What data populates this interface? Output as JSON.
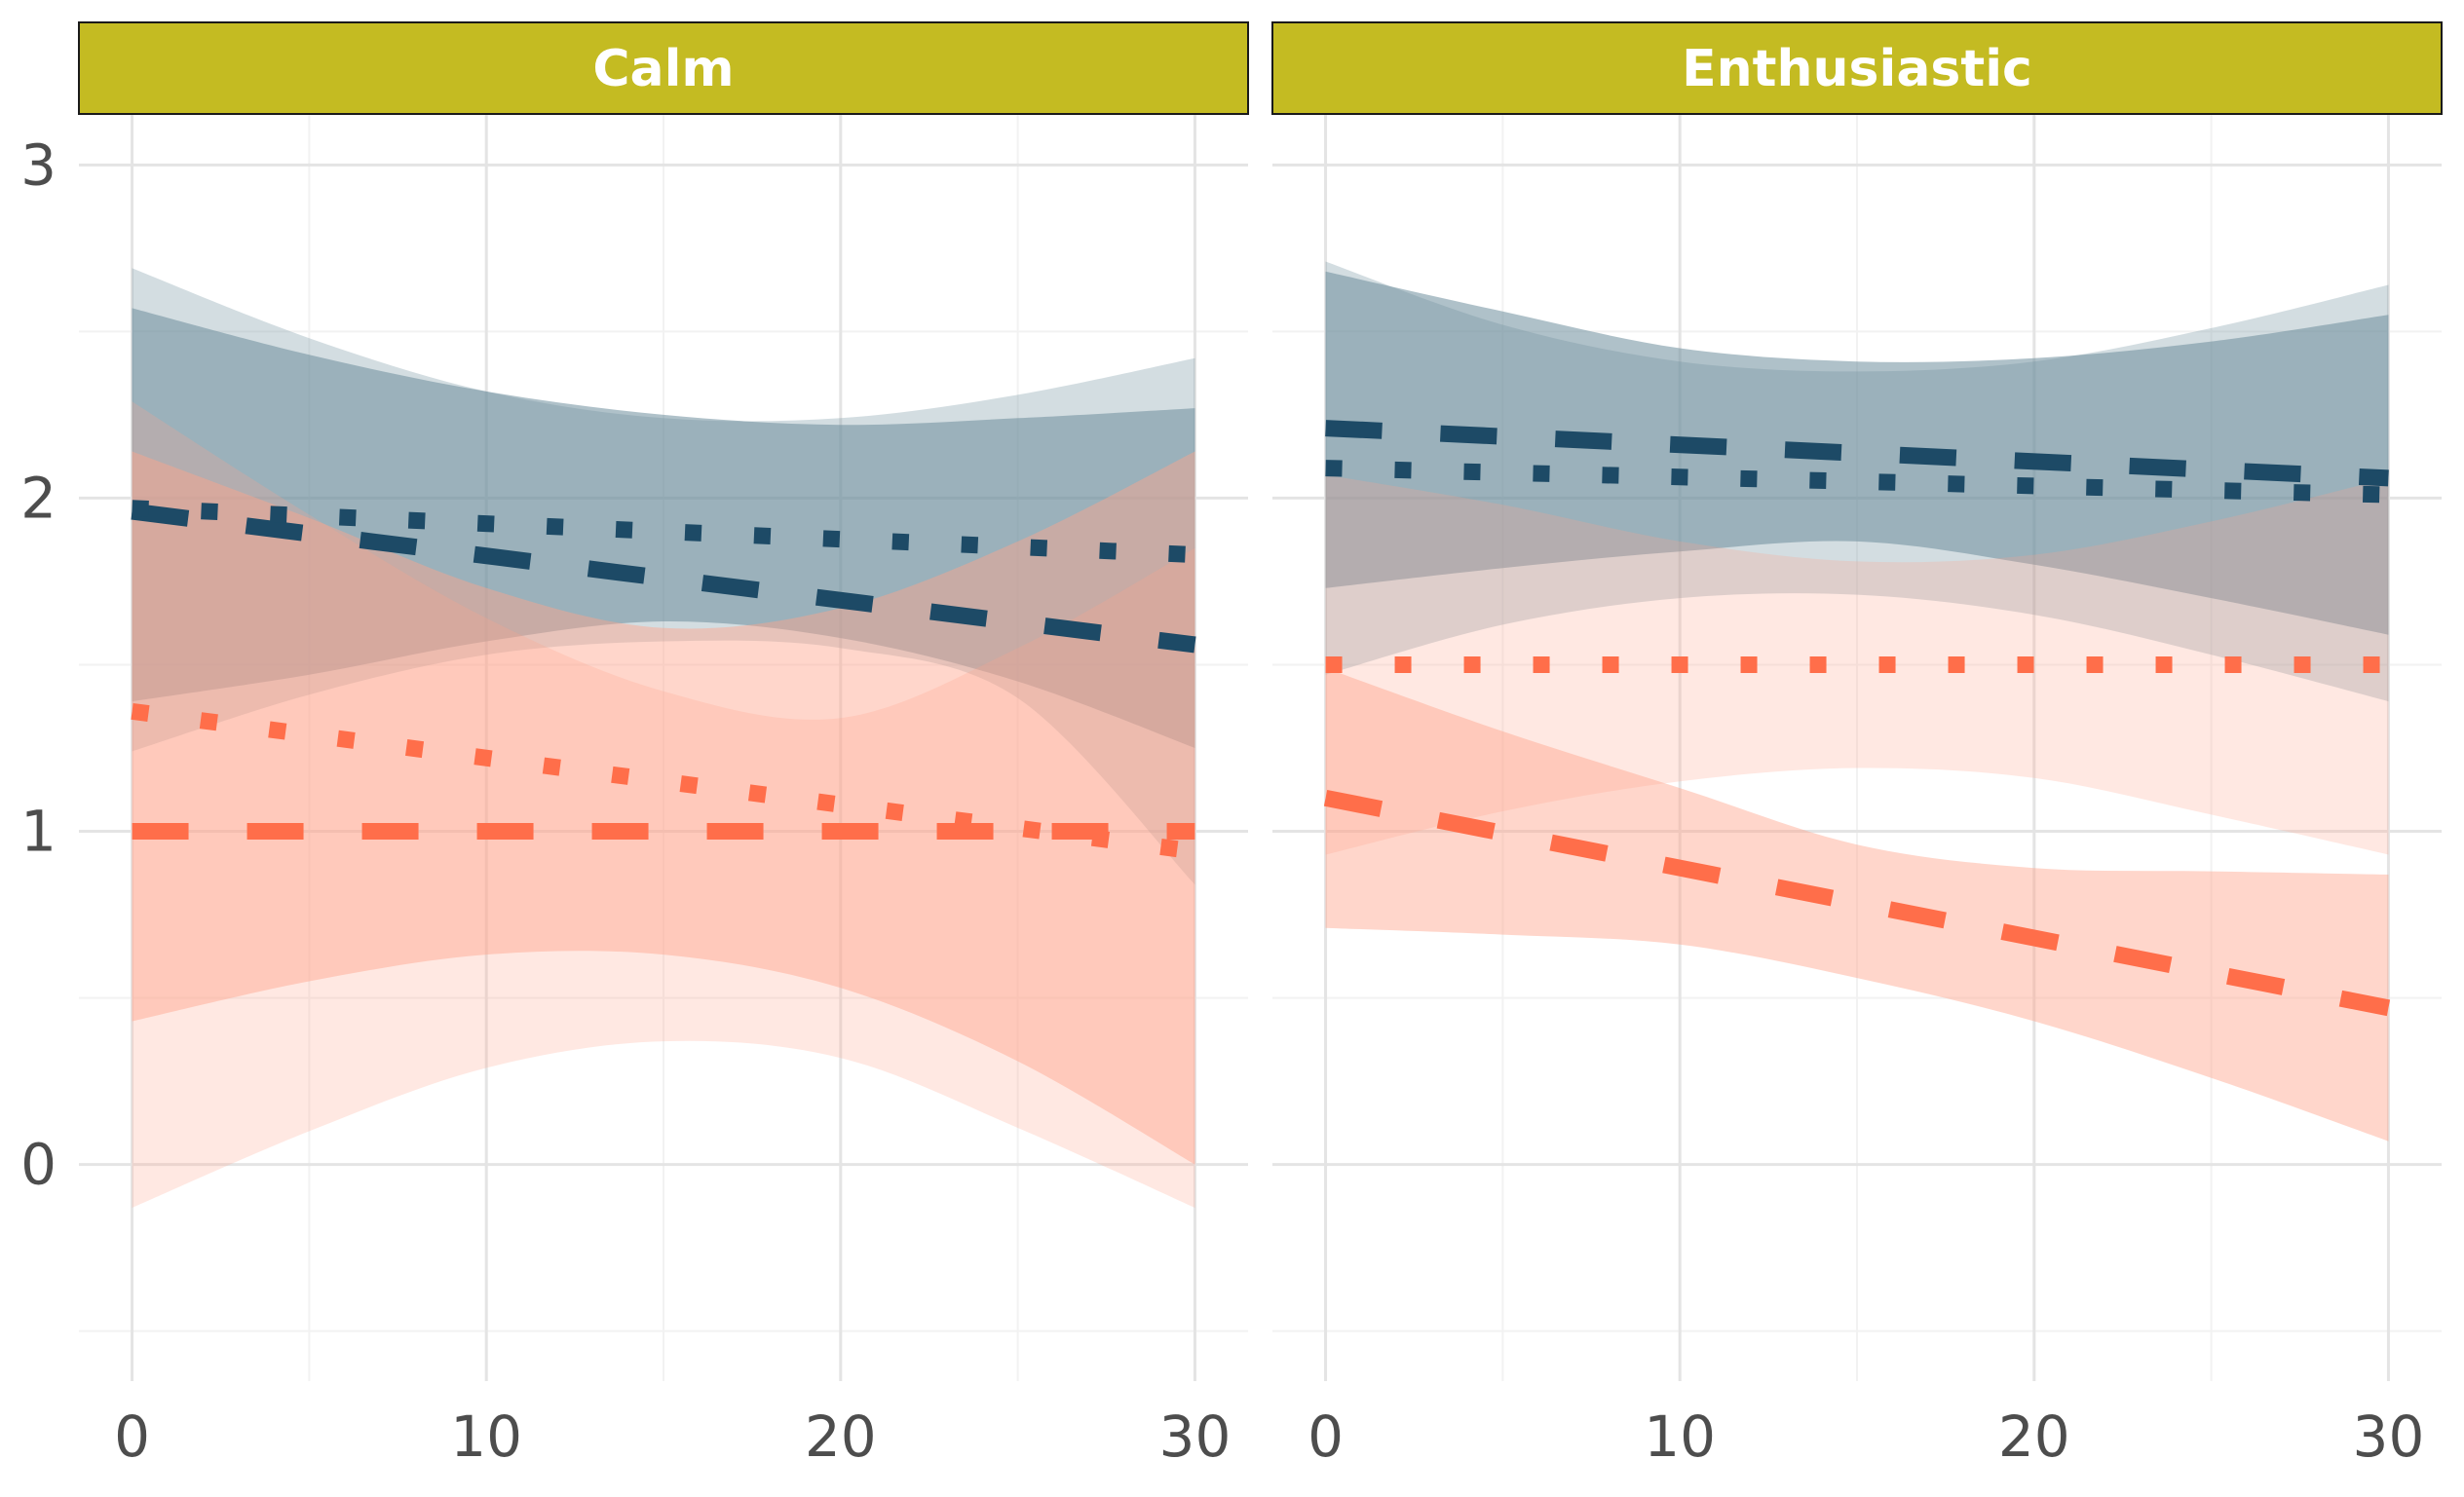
{
  "colors": {
    "strip_fill": "#c4bb22",
    "strip_border": "#1a1a1a",
    "grid_major": "#e4e4e4",
    "grid_minor": "#f2f2f2",
    "navy": "#1d4a66",
    "navy_band": "#6e8e9c",
    "coral": "#ff6e4a",
    "coral_band": "#ffa58c",
    "tick_text": "#4d4d4d"
  },
  "chart_data": {
    "type": "line",
    "xlim": [
      -1.5,
      31.5
    ],
    "ylim": [
      -0.65,
      3.15
    ],
    "x_ticks": [
      0,
      10,
      20,
      30
    ],
    "y_ticks": [
      0,
      1,
      2,
      3
    ],
    "x_tick_labels": [
      "0",
      "10",
      "20",
      "30"
    ],
    "y_tick_labels": [
      "0",
      "1",
      "2",
      "3"
    ],
    "panels": [
      {
        "strip_label": "Calm",
        "series": [
          {
            "color": "navy",
            "linetype": "dashed",
            "x": [
              0,
              30
            ],
            "y": [
              1.96,
              1.56
            ],
            "band": {
              "x": [
                0,
                5,
                10,
                15,
                20,
                25,
                30
              ],
              "upper": [
                2.57,
                2.43,
                2.32,
                2.25,
                2.22,
                2.24,
                2.27
              ],
              "lower": [
                1.39,
                1.47,
                1.57,
                1.63,
                1.58,
                1.45,
                1.25
              ],
              "opacity": 0.55
            }
          },
          {
            "color": "navy",
            "linetype": "dotted",
            "x": [
              0,
              30
            ],
            "y": [
              1.97,
              1.83
            ],
            "band": {
              "x": [
                0,
                5,
                10,
                15,
                20,
                25,
                30
              ],
              "upper": [
                2.69,
                2.48,
                2.32,
                2.24,
                2.24,
                2.31,
                2.42
              ],
              "lower": [
                1.24,
                1.41,
                1.53,
                1.57,
                1.55,
                1.4,
                0.84
              ],
              "opacity": 0.3
            }
          },
          {
            "color": "coral",
            "linetype": "dashed",
            "x": [
              0,
              30
            ],
            "y": [
              1.0,
              1.0
            ],
            "band": {
              "x": [
                0,
                5,
                10,
                15,
                20,
                25,
                30
              ],
              "upper": [
                2.14,
                1.94,
                1.73,
                1.61,
                1.67,
                1.87,
                2.14
              ],
              "lower": [
                0.43,
                0.55,
                0.63,
                0.63,
                0.53,
                0.31,
                0.0
              ],
              "opacity": 0.45
            }
          },
          {
            "color": "coral",
            "linetype": "dotted",
            "x": [
              0,
              30
            ],
            "y": [
              1.36,
              0.94
            ],
            "band": {
              "x": [
                0,
                5,
                10,
                15,
                20,
                25,
                30
              ],
              "upper": [
                2.29,
                1.95,
                1.64,
                1.42,
                1.34,
                1.55,
                1.85
              ],
              "lower": [
                -0.13,
                0.1,
                0.29,
                0.37,
                0.32,
                0.11,
                -0.13
              ],
              "opacity": 0.25
            }
          }
        ]
      },
      {
        "strip_label": "Enthusiastic",
        "series": [
          {
            "color": "navy",
            "linetype": "dashed",
            "x": [
              0,
              30
            ],
            "y": [
              2.21,
              2.06
            ],
            "band": {
              "x": [
                0,
                5,
                10,
                15,
                20,
                25,
                30
              ],
              "upper": [
                2.68,
                2.56,
                2.45,
                2.41,
                2.42,
                2.47,
                2.55
              ],
              "lower": [
                1.73,
                1.79,
                1.84,
                1.87,
                1.8,
                1.7,
                1.59
              ],
              "opacity": 0.55
            }
          },
          {
            "color": "navy",
            "linetype": "dotted",
            "x": [
              0,
              30
            ],
            "y": [
              2.09,
              2.01
            ],
            "band": {
              "x": [
                0,
                5,
                10,
                15,
                20,
                25,
                30
              ],
              "upper": [
                2.71,
                2.52,
                2.41,
                2.38,
                2.41,
                2.51,
                2.64
              ],
              "lower": [
                1.47,
                1.62,
                1.7,
                1.71,
                1.65,
                1.53,
                1.39
              ],
              "opacity": 0.3
            }
          },
          {
            "color": "coral",
            "linetype": "dashed",
            "x": [
              0,
              30
            ],
            "y": [
              1.1,
              0.47
            ],
            "band": {
              "x": [
                0,
                5,
                10,
                15,
                20,
                25,
                30
              ],
              "upper": [
                1.49,
                1.3,
                1.13,
                0.96,
                0.89,
                0.88,
                0.87
              ],
              "lower": [
                0.71,
                0.69,
                0.66,
                0.56,
                0.43,
                0.26,
                0.07
              ],
              "opacity": 0.45
            }
          },
          {
            "color": "coral",
            "linetype": "dotted",
            "x": [
              0,
              30
            ],
            "y": [
              1.5,
              1.5
            ],
            "band": {
              "x": [
                0,
                5,
                10,
                15,
                20,
                25,
                30
              ],
              "upper": [
                2.07,
                1.98,
                1.87,
                1.81,
                1.83,
                1.93,
                2.06
              ],
              "lower": [
                0.93,
                1.06,
                1.15,
                1.19,
                1.16,
                1.05,
                0.93
              ],
              "opacity": 0.25
            }
          }
        ]
      }
    ]
  }
}
